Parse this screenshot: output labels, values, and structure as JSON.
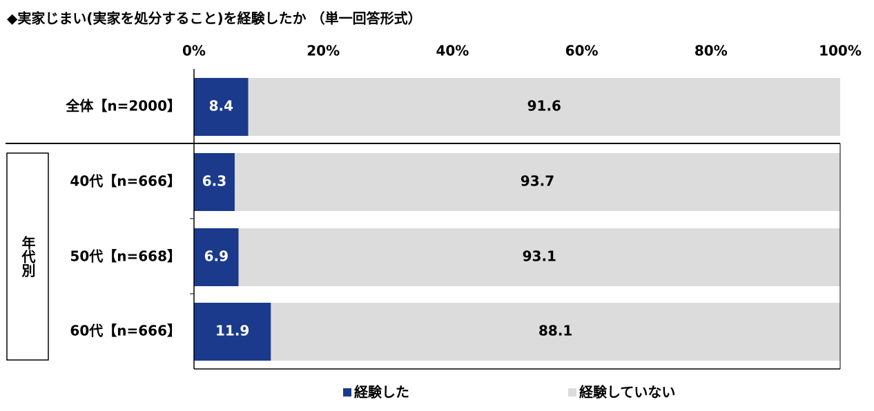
{
  "chart_data": {
    "type": "stacked-barh",
    "title": "◆実家じまい(実家を処分すること)を経験したか （単一回答形式）",
    "group_label": "年代別",
    "categories": [
      "全体【n=2000】",
      "40代【n=666】",
      "50代【n=668】",
      "60代【n=666】"
    ],
    "series": [
      {
        "name": "経験した",
        "color": "#1b3a8c",
        "values": [
          8.4,
          6.3,
          6.9,
          11.9
        ]
      },
      {
        "name": "経験していない",
        "color": "#dcdcdc",
        "values": [
          91.6,
          93.7,
          93.1,
          88.1
        ]
      }
    ],
    "xlim": [
      0,
      100
    ],
    "xticks": [
      {
        "value": 0,
        "label": "0%"
      },
      {
        "value": 20,
        "label": "20%"
      },
      {
        "value": 40,
        "label": "40%"
      },
      {
        "value": 60,
        "label": "60%"
      },
      {
        "value": 80,
        "label": "80%"
      },
      {
        "value": 100,
        "label": "100%"
      }
    ]
  }
}
